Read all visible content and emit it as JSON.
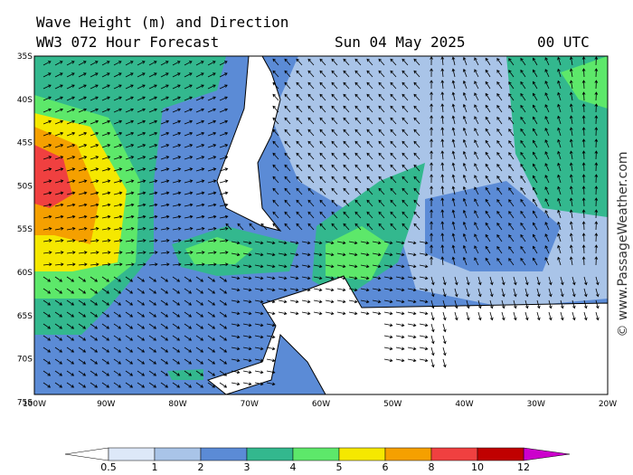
{
  "header": {
    "title": "Wave Height (m) and Direction",
    "model": "WW3 072 Hour Forecast",
    "date": "Sun 04 May 2025",
    "time": "00 UTC"
  },
  "map": {
    "lat_labels": [
      "35S",
      "40S",
      "45S",
      "50S",
      "55S",
      "60S",
      "65S",
      "70S",
      "75S"
    ],
    "lon_labels": [
      "100W",
      "90W",
      "80W",
      "70W",
      "60W",
      "50W",
      "40W",
      "30W",
      "20W"
    ]
  },
  "legend": {
    "labels": [
      "0.5",
      "1",
      "2",
      "3",
      "4",
      "5",
      "6",
      "8",
      "10",
      "12"
    ]
  },
  "credit": "© www.PassageWeather.com"
}
